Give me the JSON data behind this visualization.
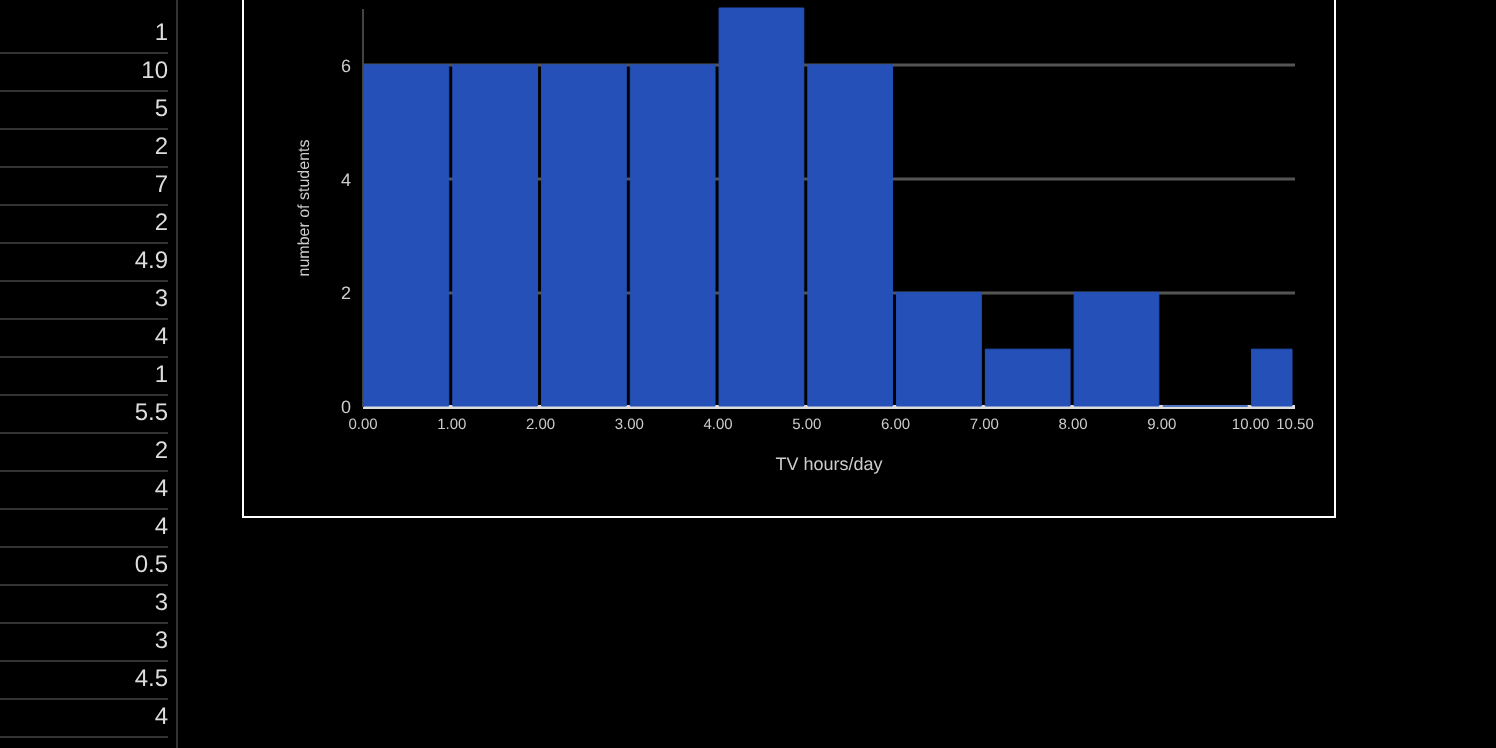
{
  "chart_data": [
    {
      "type": "histogram",
      "xlabel": "TV hours/day",
      "ylabel": "number of students",
      "bins": [
        0,
        1,
        2,
        3,
        4,
        5,
        6,
        7,
        8,
        9,
        10,
        10.5
      ],
      "values": [
        6,
        6,
        6,
        6,
        7,
        6,
        2,
        1,
        2,
        0,
        1
      ],
      "color": "#2450b8",
      "xlim": [
        0,
        10.5
      ],
      "xticks": [
        {
          "value": 0,
          "label": "0.00"
        },
        {
          "value": 1,
          "label": "1.00"
        },
        {
          "value": 2,
          "label": "2.00"
        },
        {
          "value": 3,
          "label": "3.00"
        },
        {
          "value": 4,
          "label": "4.00"
        },
        {
          "value": 5,
          "label": "5.00"
        },
        {
          "value": 6,
          "label": "6.00"
        },
        {
          "value": 7,
          "label": "7.00"
        },
        {
          "value": 8,
          "label": "8.00"
        },
        {
          "value": 9,
          "label": "9.00"
        },
        {
          "value": 10,
          "label": "10.00"
        },
        {
          "value": 10.5,
          "label": "10.50"
        }
      ],
      "ylim": [
        0,
        7
      ],
      "yticks": [
        0,
        2,
        4,
        6
      ],
      "grid": "y"
    },
    {
      "type": "other",
      "annotations": [
        "1",
        "10",
        "5",
        "2",
        "7",
        "2",
        "4.9",
        "3",
        "4",
        "1",
        "5.5",
        "2",
        "4",
        "4",
        "0.5",
        "3",
        "3",
        "4.5",
        "4"
      ]
    }
  ]
}
